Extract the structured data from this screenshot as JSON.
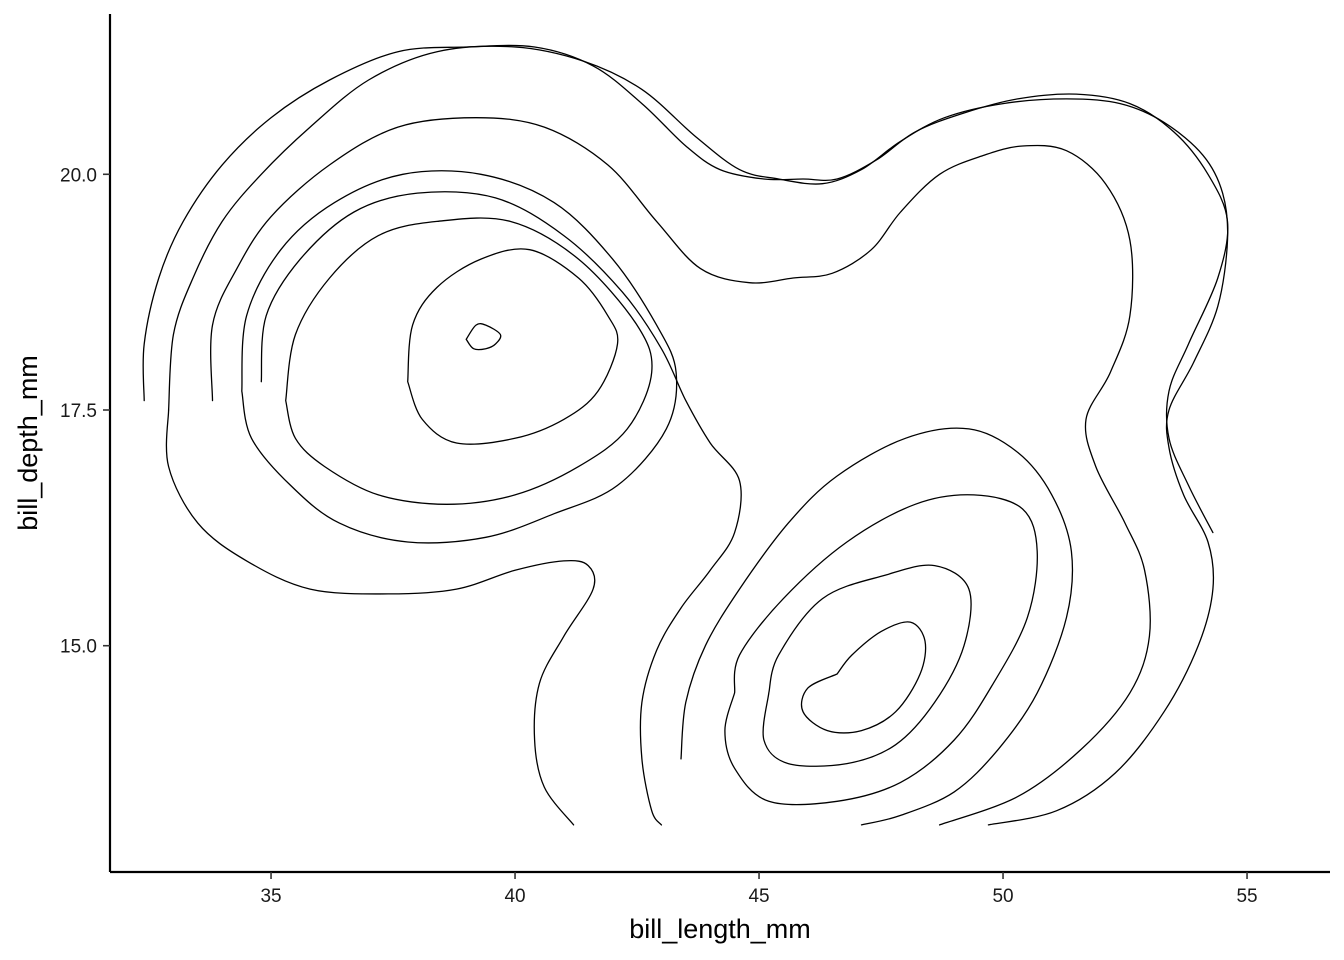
{
  "chart_data": {
    "type": "contour",
    "xlabel": "bill_length_mm",
    "ylabel": "bill_depth_mm",
    "xlim": [
      31.7,
      56.7
    ],
    "ylim": [
      12.6,
      21.7
    ],
    "x_ticks": [
      35,
      40,
      45,
      50,
      55
    ],
    "x_tick_labels": [
      "35",
      "40",
      "45",
      "50",
      "55"
    ],
    "y_ticks": [
      15.0,
      17.5,
      20.0
    ],
    "y_tick_labels": [
      "15.0",
      "17.5",
      "20.0"
    ],
    "grid": false,
    "line_color": "#000000",
    "contours": [
      {
        "points": [
          [
            32.9,
            17.5
          ],
          [
            33.0,
            18.3
          ],
          [
            33.4,
            18.9
          ],
          [
            34.0,
            19.5
          ],
          [
            34.8,
            20.0
          ],
          [
            35.8,
            20.5
          ],
          [
            37.0,
            21.0
          ],
          [
            38.4,
            21.3
          ],
          [
            40.0,
            21.35
          ],
          [
            41.4,
            21.2
          ],
          [
            42.6,
            20.9
          ],
          [
            43.7,
            20.4
          ],
          [
            44.6,
            20.05
          ],
          [
            45.4,
            19.95
          ],
          [
            46.3,
            19.9
          ],
          [
            47.1,
            20.05
          ],
          [
            47.9,
            20.35
          ],
          [
            48.8,
            20.6
          ],
          [
            50.0,
            20.75
          ],
          [
            51.3,
            20.8
          ],
          [
            52.4,
            20.75
          ],
          [
            53.3,
            20.55
          ],
          [
            54.1,
            20.2
          ],
          [
            54.5,
            19.8
          ],
          [
            54.6,
            19.3
          ],
          [
            54.4,
            18.6
          ],
          [
            53.9,
            18.0
          ],
          [
            53.4,
            17.5
          ],
          [
            53.4,
            17.1
          ],
          [
            53.7,
            16.6
          ],
          [
            54.2,
            16.1
          ],
          [
            54.3,
            15.6
          ],
          [
            54.0,
            15.0
          ],
          [
            53.3,
            14.3
          ],
          [
            52.3,
            13.65
          ],
          [
            51.1,
            13.25
          ],
          [
            49.7,
            13.1
          ]
        ]
      },
      {
        "points": [
          [
            32.4,
            17.6
          ],
          [
            32.4,
            18.2
          ],
          [
            32.7,
            18.9
          ],
          [
            33.2,
            19.5
          ],
          [
            34.0,
            20.1
          ],
          [
            35.0,
            20.6
          ],
          [
            36.2,
            21.0
          ],
          [
            37.6,
            21.3
          ],
          [
            39.0,
            21.35
          ],
          [
            40.4,
            21.35
          ],
          [
            41.6,
            21.15
          ],
          [
            42.6,
            20.75
          ],
          [
            43.5,
            20.3
          ],
          [
            44.2,
            20.05
          ],
          [
            45.1,
            19.95
          ],
          [
            45.9,
            19.95
          ],
          [
            46.6,
            19.95
          ],
          [
            47.4,
            20.15
          ],
          [
            48.2,
            20.45
          ],
          [
            49.2,
            20.65
          ],
          [
            50.3,
            20.8
          ],
          [
            51.5,
            20.85
          ],
          [
            52.6,
            20.75
          ],
          [
            53.5,
            20.45
          ],
          [
            54.2,
            20.0
          ],
          [
            54.6,
            19.5
          ],
          [
            54.4,
            18.9
          ],
          [
            53.8,
            18.2
          ],
          [
            53.4,
            17.7
          ],
          [
            53.4,
            17.2
          ],
          [
            53.8,
            16.7
          ],
          [
            54.3,
            16.2
          ]
        ]
      },
      {
        "points": [
          [
            33.8,
            17.6
          ],
          [
            33.8,
            18.4
          ],
          [
            34.3,
            19.0
          ],
          [
            35.0,
            19.55
          ],
          [
            36.2,
            20.1
          ],
          [
            37.6,
            20.5
          ],
          [
            39.2,
            20.6
          ],
          [
            40.6,
            20.5
          ],
          [
            41.9,
            20.1
          ],
          [
            42.9,
            19.5
          ],
          [
            43.8,
            19.0
          ],
          [
            44.8,
            18.85
          ],
          [
            45.7,
            18.9
          ],
          [
            46.5,
            18.95
          ],
          [
            47.3,
            19.2
          ],
          [
            47.9,
            19.6
          ],
          [
            48.7,
            20.0
          ],
          [
            49.6,
            20.2
          ],
          [
            50.4,
            20.3
          ],
          [
            51.3,
            20.25
          ],
          [
            52.1,
            19.9
          ],
          [
            52.6,
            19.3
          ],
          [
            52.6,
            18.5
          ],
          [
            52.2,
            17.9
          ],
          [
            51.7,
            17.4
          ],
          [
            51.9,
            16.9
          ],
          [
            52.5,
            16.3
          ],
          [
            52.9,
            15.8
          ],
          [
            53.0,
            15.1
          ],
          [
            52.6,
            14.5
          ],
          [
            51.6,
            13.9
          ],
          [
            50.3,
            13.4
          ],
          [
            48.7,
            13.1
          ]
        ]
      },
      {
        "points": [
          [
            34.8,
            17.8
          ],
          [
            34.9,
            18.5
          ],
          [
            35.6,
            19.1
          ],
          [
            36.7,
            19.6
          ],
          [
            38.0,
            19.8
          ],
          [
            39.6,
            19.75
          ],
          [
            41.0,
            19.35
          ],
          [
            42.2,
            18.75
          ],
          [
            43.0,
            18.15
          ],
          [
            43.5,
            17.6
          ],
          [
            44.0,
            17.15
          ],
          [
            44.6,
            16.75
          ],
          [
            44.5,
            16.2
          ],
          [
            44.0,
            15.8
          ],
          [
            43.4,
            15.4
          ],
          [
            42.9,
            14.95
          ],
          [
            42.6,
            14.4
          ],
          [
            42.6,
            13.8
          ],
          [
            42.8,
            13.25
          ],
          [
            43.0,
            13.1
          ]
        ]
      },
      {
        "points": [
          [
            37.8,
            17.8
          ],
          [
            37.9,
            18.4
          ],
          [
            38.4,
            18.8
          ],
          [
            39.3,
            19.1
          ],
          [
            40.3,
            19.2
          ],
          [
            41.3,
            18.9
          ],
          [
            41.9,
            18.5
          ],
          [
            42.1,
            18.2
          ],
          [
            41.7,
            17.7
          ],
          [
            41.0,
            17.4
          ],
          [
            40.0,
            17.2
          ],
          [
            38.8,
            17.15
          ],
          [
            38.1,
            17.4
          ],
          [
            37.8,
            17.8
          ]
        ]
      },
      {
        "points": [
          [
            39.0,
            18.25
          ],
          [
            39.2,
            18.4
          ],
          [
            39.4,
            18.4
          ],
          [
            39.7,
            18.3
          ],
          [
            39.6,
            18.2
          ],
          [
            39.4,
            18.15
          ],
          [
            39.15,
            18.15
          ],
          [
            39.0,
            18.25
          ]
        ]
      },
      {
        "points": [
          [
            46.6,
            14.7
          ],
          [
            46.9,
            14.9
          ],
          [
            47.5,
            15.15
          ],
          [
            48.1,
            15.25
          ],
          [
            48.4,
            15.05
          ],
          [
            48.3,
            14.7
          ],
          [
            47.8,
            14.3
          ],
          [
            47.1,
            14.1
          ],
          [
            46.4,
            14.1
          ],
          [
            45.9,
            14.3
          ],
          [
            46.0,
            14.55
          ],
          [
            46.6,
            14.7
          ]
        ]
      },
      {
        "points": [
          [
            45.2,
            14.5
          ],
          [
            45.4,
            14.9
          ],
          [
            46.3,
            15.5
          ],
          [
            47.6,
            15.75
          ],
          [
            48.6,
            15.85
          ],
          [
            49.3,
            15.6
          ],
          [
            49.2,
            15.0
          ],
          [
            48.6,
            14.4
          ],
          [
            47.8,
            13.95
          ],
          [
            46.8,
            13.75
          ],
          [
            45.6,
            13.75
          ],
          [
            45.1,
            14.0
          ],
          [
            45.2,
            14.5
          ]
        ]
      },
      {
        "points": [
          [
            44.5,
            14.5
          ],
          [
            44.6,
            14.9
          ],
          [
            45.5,
            15.5
          ],
          [
            46.8,
            16.1
          ],
          [
            48.2,
            16.5
          ],
          [
            49.4,
            16.6
          ],
          [
            50.4,
            16.45
          ],
          [
            50.7,
            16.0
          ],
          [
            50.5,
            15.3
          ],
          [
            49.8,
            14.6
          ],
          [
            49.0,
            14.0
          ],
          [
            47.9,
            13.55
          ],
          [
            46.6,
            13.35
          ],
          [
            45.2,
            13.35
          ],
          [
            44.5,
            13.7
          ],
          [
            44.3,
            14.1
          ],
          [
            44.5,
            14.5
          ]
        ]
      },
      {
        "points": [
          [
            43.4,
            13.8
          ],
          [
            43.5,
            14.4
          ],
          [
            43.9,
            15.0
          ],
          [
            44.6,
            15.6
          ],
          [
            45.6,
            16.3
          ],
          [
            46.6,
            16.8
          ],
          [
            48.0,
            17.2
          ],
          [
            49.3,
            17.3
          ],
          [
            50.3,
            17.05
          ],
          [
            51.0,
            16.6
          ],
          [
            51.4,
            16.0
          ],
          [
            51.3,
            15.3
          ],
          [
            50.7,
            14.5
          ],
          [
            49.9,
            13.9
          ],
          [
            49.0,
            13.45
          ],
          [
            47.9,
            13.2
          ],
          [
            47.1,
            13.1
          ]
        ]
      },
      {
        "points": [
          [
            41.2,
            13.1
          ],
          [
            40.6,
            13.5
          ],
          [
            40.4,
            14.0
          ],
          [
            40.5,
            14.6
          ],
          [
            41.0,
            15.1
          ],
          [
            41.6,
            15.6
          ],
          [
            41.5,
            15.85
          ],
          [
            41.0,
            15.9
          ],
          [
            40.0,
            15.8
          ],
          [
            38.8,
            15.6
          ],
          [
            37.4,
            15.55
          ],
          [
            35.8,
            15.6
          ],
          [
            34.5,
            15.9
          ],
          [
            33.5,
            16.3
          ],
          [
            32.9,
            16.9
          ],
          [
            32.9,
            17.5
          ]
        ]
      },
      {
        "points": [
          [
            35.3,
            17.6
          ],
          [
            35.5,
            18.3
          ],
          [
            36.2,
            18.9
          ],
          [
            37.2,
            19.35
          ],
          [
            38.4,
            19.5
          ],
          [
            39.9,
            19.5
          ],
          [
            41.3,
            19.1
          ],
          [
            42.5,
            18.4
          ],
          [
            42.8,
            17.9
          ],
          [
            42.3,
            17.3
          ],
          [
            41.3,
            16.9
          ],
          [
            40.0,
            16.6
          ],
          [
            38.6,
            16.5
          ],
          [
            37.2,
            16.6
          ],
          [
            36.1,
            16.9
          ],
          [
            35.5,
            17.2
          ],
          [
            35.3,
            17.6
          ]
        ]
      },
      {
        "points": [
          [
            34.4,
            17.7
          ],
          [
            34.5,
            18.5
          ],
          [
            35.2,
            19.2
          ],
          [
            36.3,
            19.7
          ],
          [
            37.7,
            20.0
          ],
          [
            39.3,
            20.0
          ],
          [
            40.8,
            19.7
          ],
          [
            42.0,
            19.1
          ],
          [
            42.9,
            18.4
          ],
          [
            43.3,
            17.9
          ],
          [
            43.1,
            17.3
          ],
          [
            42.1,
            16.7
          ],
          [
            40.8,
            16.4
          ],
          [
            39.4,
            16.15
          ],
          [
            37.8,
            16.1
          ],
          [
            36.4,
            16.3
          ],
          [
            35.4,
            16.7
          ],
          [
            34.6,
            17.2
          ],
          [
            34.4,
            17.7
          ]
        ]
      }
    ]
  }
}
